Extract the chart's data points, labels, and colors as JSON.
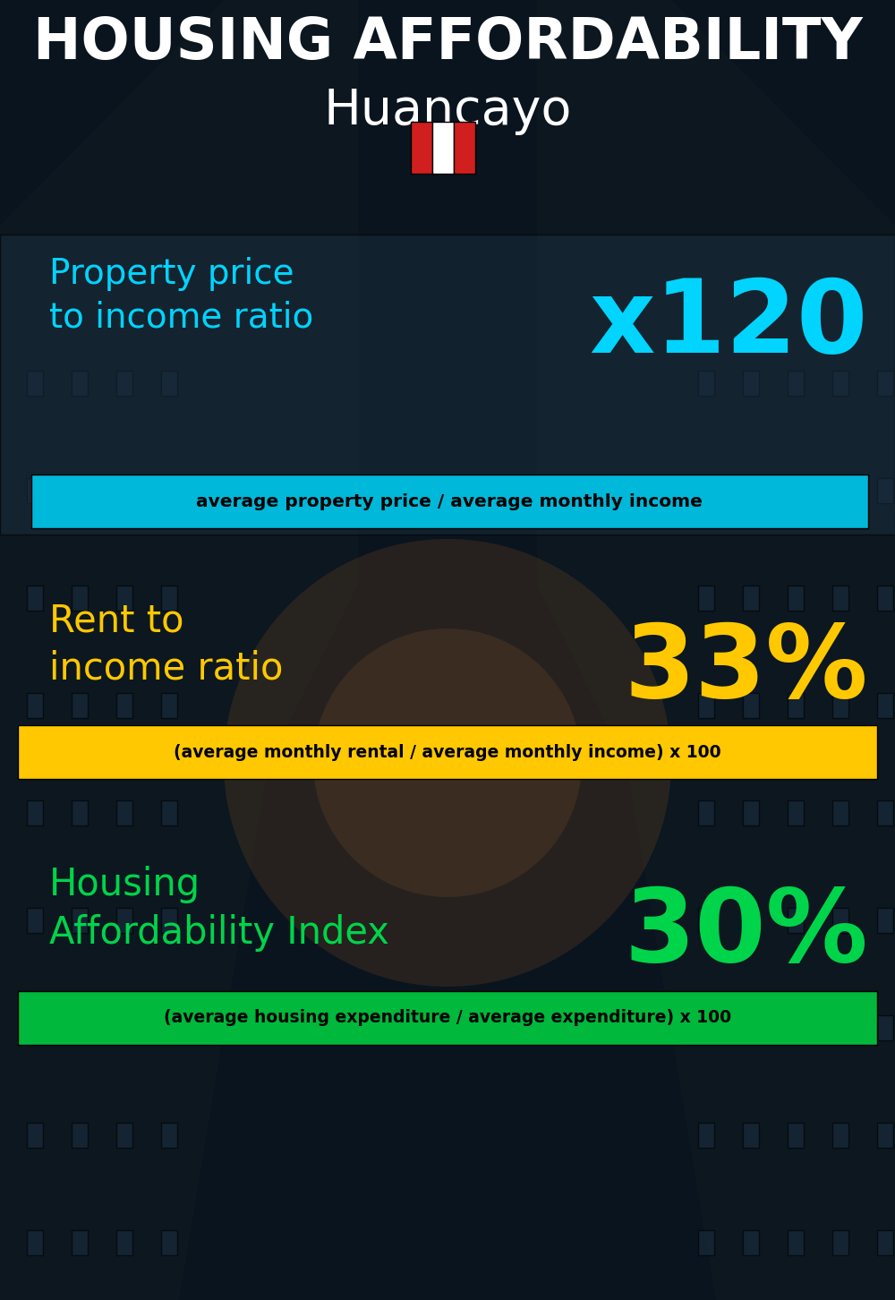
{
  "title_line1": "HOUSING AFFORDABILITY",
  "title_line2": "Huancayo",
  "bg_color": "#0a141e",
  "section1_label": "Property price\nto income ratio",
  "section1_value": "x120",
  "section1_label_color": "#00d4ff",
  "section1_value_color": "#00d4ff",
  "section1_banner": "average property price / average monthly income",
  "section1_banner_bg": "#00b8d9",
  "section2_label": "Rent to\nincome ratio",
  "section2_value": "33%",
  "section2_label_color": "#ffc800",
  "section2_value_color": "#ffc800",
  "section2_banner": "(average monthly rental / average monthly income) x 100",
  "section2_banner_bg": "#ffc800",
  "section3_label": "Housing\nAffordability Index",
  "section3_value": "30%",
  "section3_label_color": "#00d44a",
  "section3_value_color": "#00d44a",
  "section3_banner": "(average housing expenditure / average expenditure) x 100",
  "section3_banner_bg": "#00b83c",
  "flag_red": "#d11f1f",
  "flag_white": "#ffffff",
  "title_color": "#ffffff",
  "banner_text_color": "#000000",
  "panel1_color": "#1a2d3d",
  "panel1_alpha": 0.55
}
